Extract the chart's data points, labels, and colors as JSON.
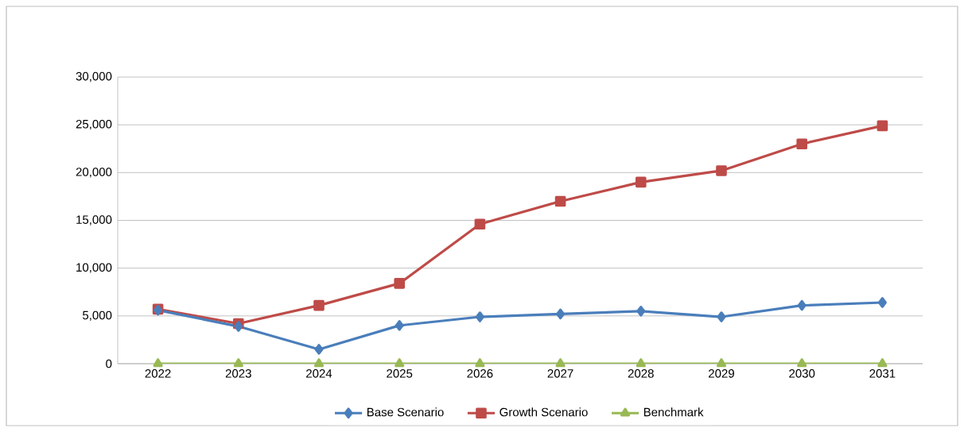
{
  "chart_data": {
    "type": "line",
    "categories": [
      "2022",
      "2023",
      "2024",
      "2025",
      "2026",
      "2027",
      "2028",
      "2029",
      "2030",
      "2031"
    ],
    "series": [
      {
        "name": "Base Scenario",
        "color": "#4a7ebb",
        "marker": "diamond",
        "values": [
          5600,
          3900,
          1500,
          4000,
          4900,
          5200,
          5500,
          4900,
          6100,
          6400
        ]
      },
      {
        "name": "Growth Scenario",
        "color": "#be4b48",
        "marker": "square",
        "values": [
          5700,
          4200,
          6100,
          8400,
          14600,
          17000,
          19000,
          20200,
          23000,
          24900
        ]
      },
      {
        "name": "Benchmark",
        "color": "#98b954",
        "marker": "triangle",
        "values": [
          0,
          0,
          0,
          0,
          0,
          0,
          0,
          0,
          0,
          0
        ]
      }
    ],
    "ylim": [
      0,
      30000
    ],
    "yticks": [
      {
        "value": 0,
        "label": "0"
      },
      {
        "value": 5000,
        "label": "5,000"
      },
      {
        "value": 10000,
        "label": "10,000"
      },
      {
        "value": 15000,
        "label": "15,000"
      },
      {
        "value": 20000,
        "label": "20,000"
      },
      {
        "value": 25000,
        "label": "25,000"
      },
      {
        "value": 30000,
        "label": "30,000"
      }
    ],
    "grid": "y",
    "legend": "bottom",
    "line_style": "solid"
  }
}
